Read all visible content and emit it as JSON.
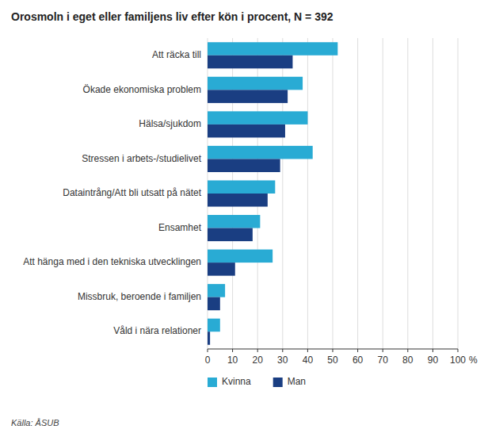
{
  "chart_data": {
    "type": "bar",
    "orientation": "horizontal",
    "title": "Orosmoln i eget eller familjens liv efter kön i procent, N = 392",
    "categories": [
      "Att räcka till",
      "Ökade ekonomiska problem",
      "Hälsa/sjukdom",
      "Stressen i arbets-/studielivet",
      "Dataintrång/Att bli utsatt på nätet",
      "Ensamhet",
      "Att hänga med i den tekniska utvecklingen",
      "Missbruk, beroende i familjen",
      "Våld i nära relationer"
    ],
    "series": [
      {
        "name": "Kvinna",
        "color": "#29ABD4",
        "values": [
          52,
          38,
          40,
          42,
          27,
          21,
          26,
          7,
          5
        ]
      },
      {
        "name": "Man",
        "color": "#1A3E82",
        "values": [
          34,
          32,
          31,
          29,
          24,
          18,
          11,
          5,
          1
        ]
      }
    ],
    "xlabel": "%",
    "xlim": [
      0,
      100
    ],
    "xticks": [
      0,
      10,
      20,
      30,
      40,
      50,
      60,
      70,
      80,
      90,
      100
    ],
    "grid": true,
    "legend": "bottom",
    "source": "Källa: ÅSUB"
  }
}
